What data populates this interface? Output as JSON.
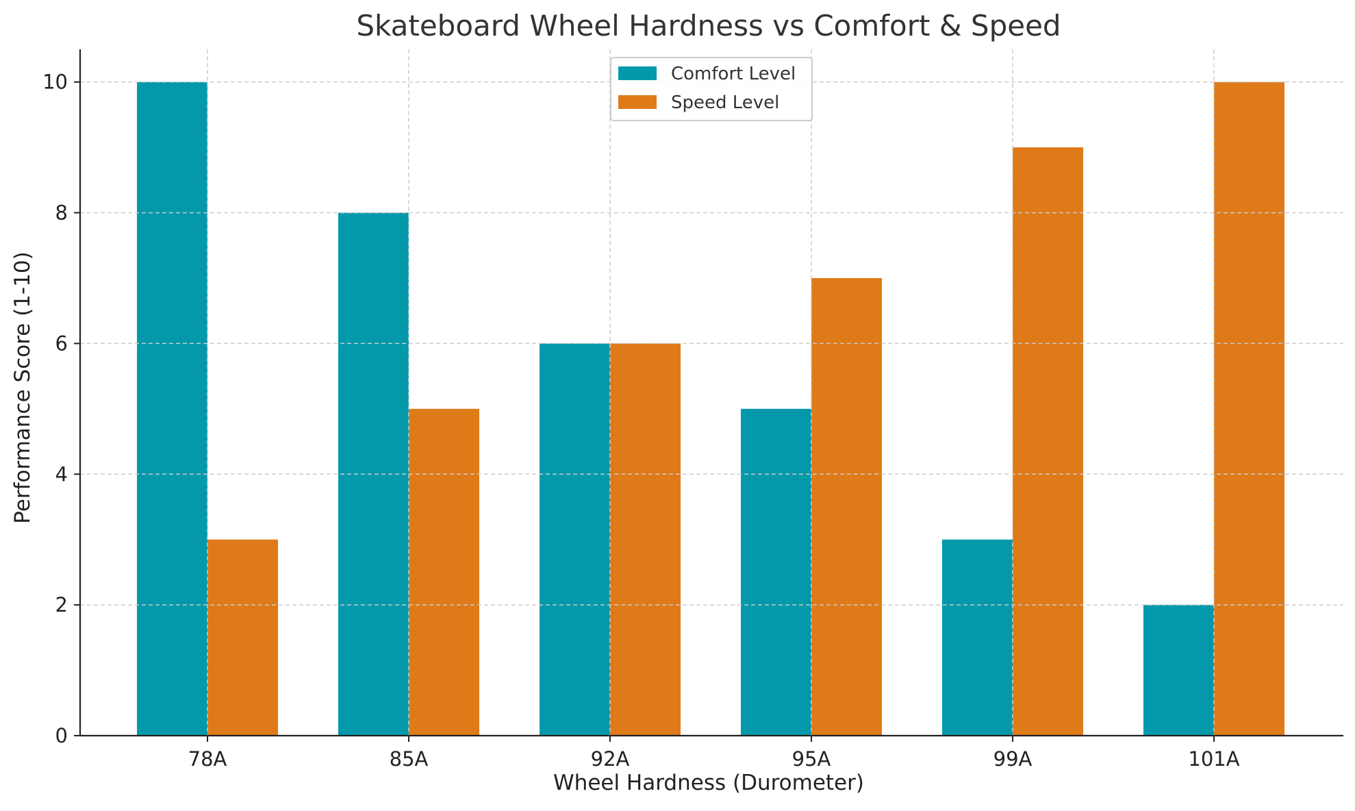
{
  "chart_data": {
    "type": "bar",
    "title": "Skateboard Wheel Hardness vs Comfort & Speed",
    "xlabel": "Wheel Hardness (Durometer)",
    "ylabel": "Performance Score (1-10)",
    "categories": [
      "78A",
      "85A",
      "92A",
      "95A",
      "99A",
      "101A"
    ],
    "series": [
      {
        "name": "Comfort Level",
        "values": [
          10,
          8,
          6,
          5,
          3,
          2
        ],
        "color": "#0399ab"
      },
      {
        "name": "Speed Level",
        "values": [
          3,
          5,
          6,
          7,
          9,
          10
        ],
        "color": "#df7a18"
      }
    ],
    "ylim": [
      0,
      10.5
    ],
    "yticks": [
      0,
      2,
      4,
      6,
      8,
      10
    ],
    "grid": true,
    "legend_position": "top-center"
  }
}
